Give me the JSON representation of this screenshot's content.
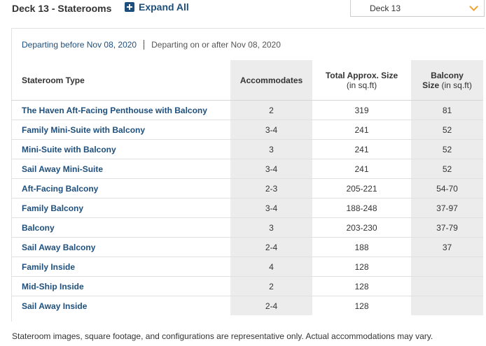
{
  "header": {
    "deck_title": "Deck 13 - Staterooms",
    "expand_all_label": "Expand All",
    "deck_select_value": "Deck 13"
  },
  "date_tabs": {
    "active": "Departing before Nov 08, 2020",
    "inactive": "Departing on or after Nov 08, 2020"
  },
  "table": {
    "headers": {
      "type": "Stateroom Type",
      "accommodates": "Accommodates",
      "size_line1": "Total Approx. Size",
      "size_line2": "(in sq.ft)",
      "balcony_line1": "Balcony",
      "balcony_line2a": "Size",
      "balcony_line2b": "(in sq.ft)"
    },
    "rows": [
      {
        "type": "The Haven Aft-Facing Penthouse with Balcony",
        "accommodates": "2",
        "size": "319",
        "balcony": "81"
      },
      {
        "type": "Family Mini-Suite with Balcony",
        "accommodates": "3-4",
        "size": "241",
        "balcony": "52"
      },
      {
        "type": "Mini-Suite with Balcony",
        "accommodates": "3",
        "size": "241",
        "balcony": "52"
      },
      {
        "type": "Sail Away Mini-Suite",
        "accommodates": "3-4",
        "size": "241",
        "balcony": "52"
      },
      {
        "type": "Aft-Facing Balcony",
        "accommodates": "2-3",
        "size": "205-221",
        "balcony": "54-70"
      },
      {
        "type": "Family Balcony",
        "accommodates": "3-4",
        "size": "188-248",
        "balcony": "37-97"
      },
      {
        "type": "Balcony",
        "accommodates": "3",
        "size": "203-230",
        "balcony": "37-79"
      },
      {
        "type": "Sail Away Balcony",
        "accommodates": "2-4",
        "size": "188",
        "balcony": "37"
      },
      {
        "type": "Family Inside",
        "accommodates": "4",
        "size": "128",
        "balcony": ""
      },
      {
        "type": "Mid-Ship Inside",
        "accommodates": "2",
        "size": "128",
        "balcony": ""
      },
      {
        "type": "Sail Away Inside",
        "accommodates": "2-4",
        "size": "128",
        "balcony": ""
      }
    ]
  },
  "footnote": "Stateroom images, square footage, and configurations are representative only. Actual accommodations may vary.",
  "icons": {
    "expand": "plus-square-icon",
    "select": "chevron-down-icon"
  },
  "colors": {
    "link": "#1e4f7c",
    "accent": "#f0a32c",
    "shade": "#ececec"
  }
}
